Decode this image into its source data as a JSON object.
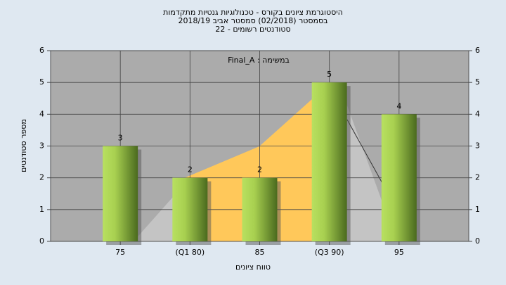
{
  "chart_data": {
    "type": "bar",
    "title": [
      "היסטוגרמת ציונים בקורס - טכנולוגיות גנטיות מתקדמות",
      "בסמסטר  (02/2018)  סמסטר אביב 2018/19",
      "סטודנטים רשומים - 22"
    ],
    "annotation": "Final_A : במשימה",
    "x_label": "טווח ציונים",
    "y_label": "מספר סטודנטים",
    "categories": [
      "75",
      "(Q1 80)",
      "85",
      "(Q3 90)",
      "95"
    ],
    "values": [
      3,
      2,
      2,
      5,
      4
    ],
    "color": "#8fc03e",
    "ylim": [
      0,
      6
    ],
    "yticks": [
      0,
      1,
      2,
      3,
      4,
      5,
      6
    ],
    "y2lim": [
      0,
      6
    ],
    "y2ticks": [
      0,
      1,
      2,
      3,
      4,
      5,
      6
    ],
    "grid": true
  }
}
